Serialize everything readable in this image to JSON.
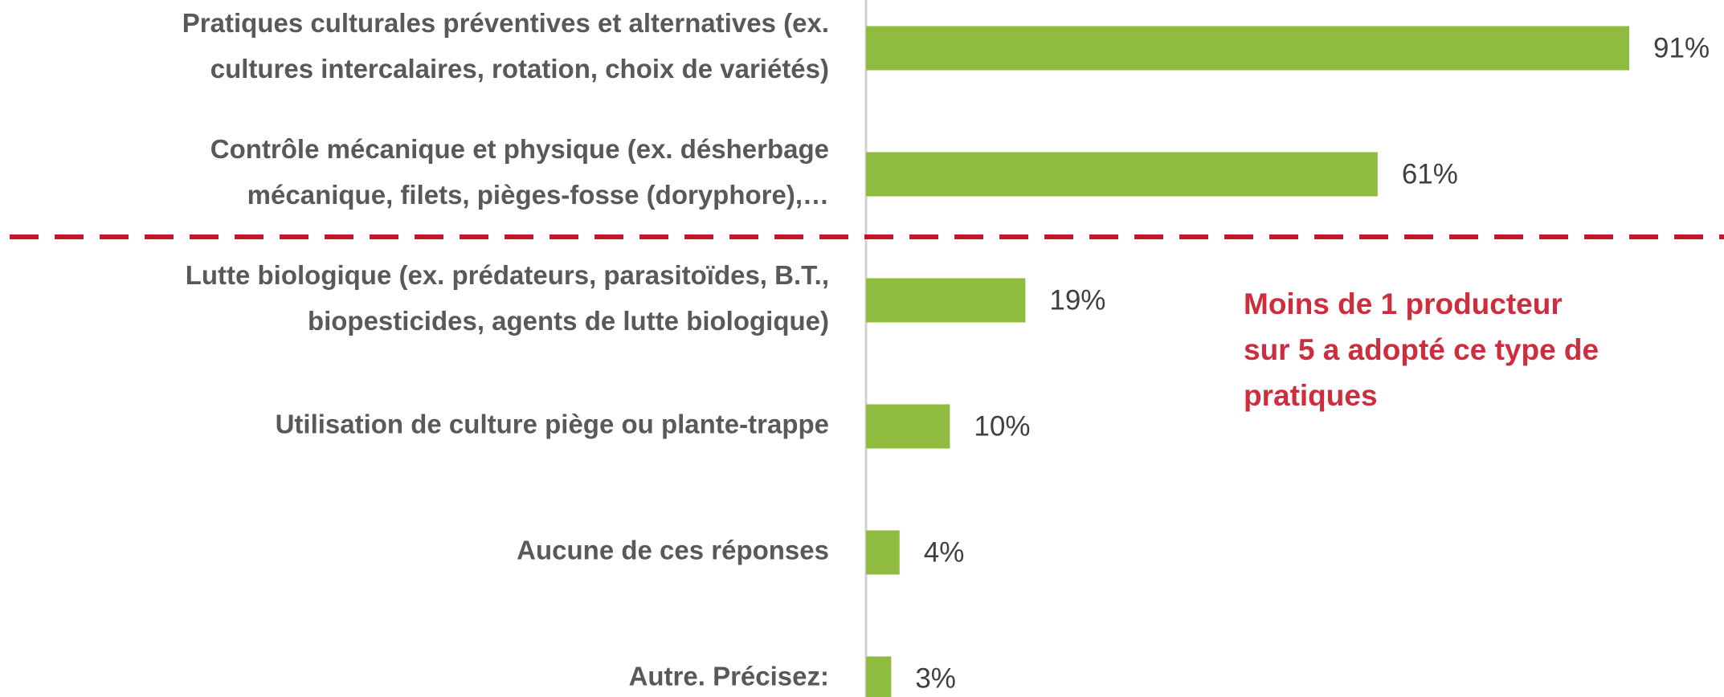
{
  "chart_data": {
    "type": "bar",
    "orientation": "horizontal",
    "categories": [
      [
        "Pratiques culturales préventives et alternatives (ex.",
        "cultures intercalaires, rotation, choix de variétés)"
      ],
      [
        "Contrôle mécanique et physique (ex. désherbage",
        "mécanique, filets, pièges-fosse (doryphore),…"
      ],
      [
        "Lutte biologique (ex. prédateurs, parasitoïdes, B.T.,",
        "biopesticides, agents de lutte biologique)"
      ],
      [
        "Utilisation de culture piège ou plante-trappe"
      ],
      [
        "Aucune de ces réponses"
      ],
      [
        "Autre. Précisez:"
      ]
    ],
    "values": [
      91,
      61,
      19,
      10,
      4,
      3
    ],
    "value_labels": [
      "91%",
      "61%",
      "19%",
      "10%",
      "4%",
      "3%"
    ],
    "color": "#8fbc3f",
    "annotation": [
      "Moins de 1 producteur",
      "sur 5 a adopté ce type de",
      "pratiques"
    ]
  }
}
